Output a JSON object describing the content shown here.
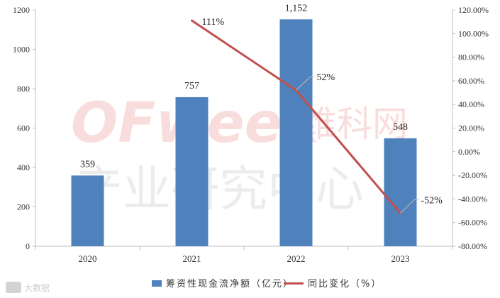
{
  "watermark": {
    "brand": "OFweek",
    "brand_cn": "维科网",
    "subtitle": "产业研究中心",
    "source_tag": "大数据"
  },
  "chart_data": {
    "type": "bar",
    "categories": [
      "2020",
      "2021",
      "2022",
      "2023"
    ],
    "series": [
      {
        "name": "筹资性现金流净额（亿元）",
        "type": "bar",
        "axis": "left",
        "values": [
          359,
          757,
          1152,
          548
        ],
        "value_labels": [
          "359",
          "757",
          "1,152",
          "548"
        ],
        "color": "#4f81bd"
      },
      {
        "name": "同比变化（%）",
        "type": "line",
        "axis": "right",
        "values": [
          null,
          111,
          52,
          -52
        ],
        "value_labels": [
          "",
          "111%",
          "52%",
          "-52%"
        ],
        "color": "#c0504d"
      }
    ],
    "y_left": {
      "min": 0,
      "max": 1200,
      "step": 200,
      "ticks": [
        "0",
        "200",
        "400",
        "600",
        "800",
        "1000",
        "1200"
      ]
    },
    "y_right": {
      "min": -80,
      "max": 120,
      "step": 20,
      "ticks": [
        "-80.00%",
        "-60.00%",
        "-40.00%",
        "-20.00%",
        "0.00%",
        "20.00%",
        "40.00%",
        "60.00%",
        "80.00%",
        "100.00%",
        "120.00%"
      ]
    },
    "grid": false,
    "legend_position": "bottom"
  }
}
